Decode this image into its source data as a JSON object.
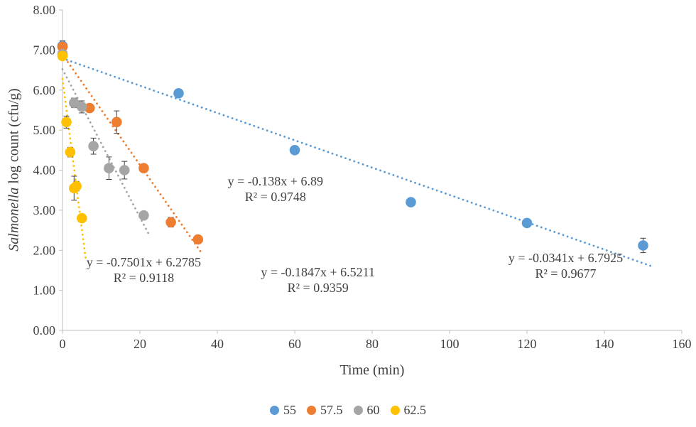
{
  "chart_data": {
    "type": "scatter",
    "title": "",
    "xlabel": "Time (min)",
    "ylabel_italic": "Salmonella",
    "ylabel_rest": " log count (cfu/g)",
    "xlim": [
      0,
      160
    ],
    "ylim": [
      0,
      8
    ],
    "xtick_step": 20,
    "ytick_step": 1,
    "legend_position": "bottom-center",
    "grid": false,
    "axis_color": "#BFBFBF",
    "text_color": "#404040",
    "error_bar_color": "#404040",
    "series": [
      {
        "name": "55",
        "color": "#5B9BD5",
        "points": [
          {
            "x": 0,
            "y": 7.1,
            "err": 0.12
          },
          {
            "x": 30,
            "y": 5.92,
            "err": 0.1
          },
          {
            "x": 60,
            "y": 4.5,
            "err": 0.08
          },
          {
            "x": 90,
            "y": 3.2,
            "err": 0.06
          },
          {
            "x": 120,
            "y": 2.68,
            "err": 0.06
          },
          {
            "x": 150,
            "y": 2.12,
            "err": 0.18
          }
        ],
        "trend": {
          "slope": -0.0341,
          "intercept": 6.7925,
          "x_start": 0,
          "x_end": 152,
          "equation": "y = -0.0341x + 6.7925",
          "r2": "R² = 0.9677",
          "label_x": 130,
          "label_y": 1.7
        }
      },
      {
        "name": "57.5",
        "color": "#ED7D31",
        "points": [
          {
            "x": 0,
            "y": 7.08,
            "err": 0.15
          },
          {
            "x": 7,
            "y": 5.55,
            "err": 0.1
          },
          {
            "x": 14,
            "y": 5.2,
            "err": 0.28
          },
          {
            "x": 21,
            "y": 4.05,
            "err": 0.1
          },
          {
            "x": 28,
            "y": 2.7,
            "err": 0.12
          },
          {
            "x": 35,
            "y": 2.27,
            "err": 0.1
          }
        ],
        "trend": {
          "slope": -0.138,
          "intercept": 6.89,
          "x_start": 0,
          "x_end": 36,
          "equation": "y = -0.138x + 6.89",
          "r2": "R² = 0.9748",
          "label_x": 55,
          "label_y": 3.62
        }
      },
      {
        "name": "60",
        "color": "#A5A5A5",
        "points": [
          {
            "x": 0,
            "y": 6.9,
            "err": 0.1
          },
          {
            "x": 3,
            "y": 5.68,
            "err": 0.12
          },
          {
            "x": 5,
            "y": 5.58,
            "err": 0.15
          },
          {
            "x": 8,
            "y": 4.6,
            "err": 0.2
          },
          {
            "x": 12,
            "y": 4.05,
            "err": 0.28
          },
          {
            "x": 16,
            "y": 4.0,
            "err": 0.22
          },
          {
            "x": 21,
            "y": 2.87,
            "err": 0.1
          }
        ],
        "trend": {
          "slope": -0.1847,
          "intercept": 6.5211,
          "x_start": 0,
          "x_end": 22.5,
          "equation": "y = -0.1847x + 6.5211",
          "r2": "R² = 0.9359",
          "label_x": 66,
          "label_y": 1.35
        }
      },
      {
        "name": "62.5",
        "color": "#FFC000",
        "points": [
          {
            "x": 0,
            "y": 6.85,
            "err": 0.1
          },
          {
            "x": 1,
            "y": 5.2,
            "err": 0.15
          },
          {
            "x": 2,
            "y": 4.45,
            "err": 0.12
          },
          {
            "x": 3,
            "y": 3.55,
            "err": 0.3
          },
          {
            "x": 3.6,
            "y": 3.6,
            "err": 0.12
          },
          {
            "x": 5,
            "y": 2.8,
            "err": 0.08
          }
        ],
        "trend": {
          "slope": -0.7501,
          "intercept": 6.2785,
          "x_start": 0,
          "x_end": 6,
          "equation": "y = -0.7501x + 6.2785",
          "r2": "R² = 0.9118",
          "label_x": 21,
          "label_y": 1.6
        }
      }
    ]
  }
}
